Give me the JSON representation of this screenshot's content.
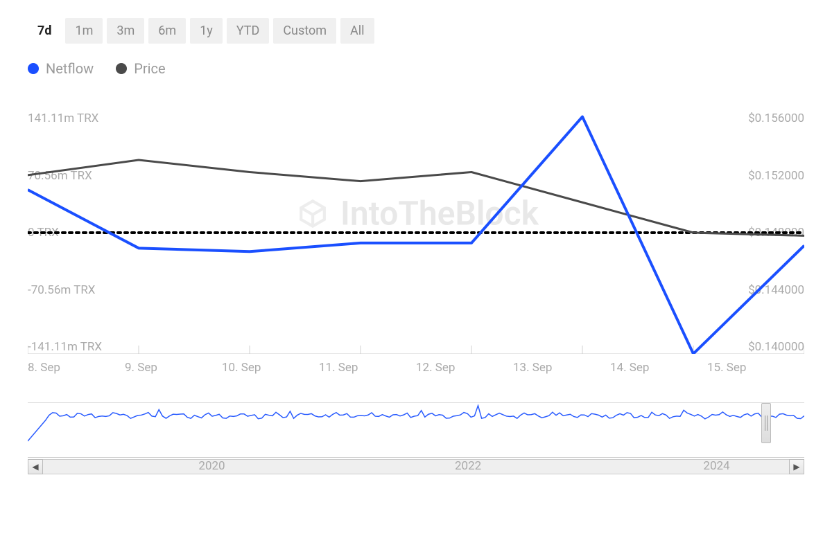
{
  "timeframe_tabs": {
    "options": [
      "7d",
      "1m",
      "3m",
      "6m",
      "1y",
      "YTD",
      "Custom",
      "All"
    ],
    "active": "7d"
  },
  "legend": {
    "items": [
      {
        "label": "Netflow",
        "color": "#1a4fff"
      },
      {
        "label": "Price",
        "color": "#4a4a4a"
      }
    ]
  },
  "watermark_text": "IntoTheBlock",
  "chart": {
    "type": "line-dual-axis",
    "background_color": "#ffffff",
    "x_categories": [
      "8. Sep",
      "9. Sep",
      "10. Sep",
      "11. Sep",
      "12. Sep",
      "13. Sep",
      "14. Sep",
      "15. Sep"
    ],
    "y_left": {
      "min": -141.11,
      "max": 141.11,
      "ticks": [
        "141.11m TRX",
        "70.56m TRX",
        "0 TRX",
        "-70.56m TRX",
        "-141.11m TRX"
      ]
    },
    "y_right": {
      "min": 0.14,
      "max": 0.156,
      "ticks": [
        "$0.156000",
        "$0.152000",
        "$0.148000",
        "$0.144000",
        "$0.140000"
      ]
    },
    "zero_line": {
      "value": 0,
      "style": "dotted",
      "color": "#000000",
      "width": 4
    },
    "series": {
      "netflow": {
        "color": "#1a4fff",
        "width": 4,
        "values": [
          50,
          -18,
          -22,
          -12,
          -12,
          135,
          -141,
          -15
        ]
      },
      "price": {
        "color": "#4a4a4a",
        "width": 3,
        "values": [
          0.1518,
          0.1528,
          0.152,
          0.1514,
          0.152,
          0.15,
          0.148,
          0.1478
        ]
      }
    },
    "tick_marks_color": "#d0d0d0"
  },
  "minichart": {
    "years": [
      "2020",
      "2022",
      "2024"
    ],
    "year_positions_pct": [
      22,
      55,
      87
    ],
    "line_color": "#2a5cff",
    "handle_position_pct": 95
  },
  "scroll": {
    "left_glyph": "◀",
    "right_glyph": "▶"
  }
}
